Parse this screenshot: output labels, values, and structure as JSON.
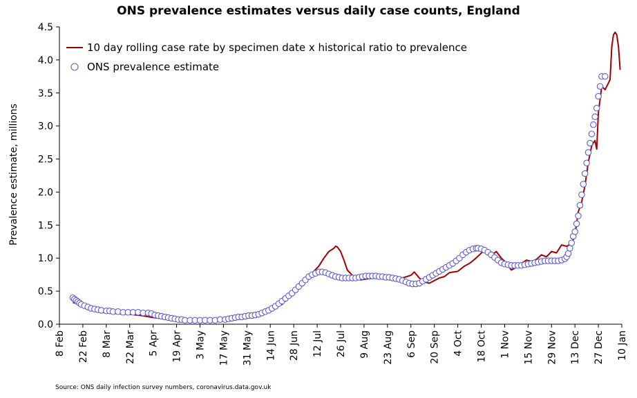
{
  "chart_data": {
    "type": "line",
    "title": "ONS prevalence estimates versus daily case counts, England",
    "xlabel": "",
    "ylabel": "Prevalence estimate, millions",
    "ylim": [
      0,
      4.5
    ],
    "yticks": [
      0.0,
      0.5,
      1.0,
      1.5,
      2.0,
      2.5,
      3.0,
      3.5,
      4.0,
      4.5
    ],
    "ytick_labels": [
      "0.0",
      "0.5",
      "1.0",
      "1.5",
      "2.0",
      "2.5",
      "3.0",
      "3.5",
      "4.0",
      "4.5"
    ],
    "xlim_days": [
      0,
      336
    ],
    "x_unit": "days since 8 Feb",
    "xtick_labels": [
      "8 Feb",
      "22 Feb",
      "8 Mar",
      "22 Mar",
      "5 Apr",
      "19 Apr",
      "3 May",
      "17 May",
      "31 May",
      "14 Jun",
      "28 Jun",
      "12 Jul",
      "26 Jul",
      "9 Aug",
      "23 Aug",
      "6 Sep",
      "20 Sep",
      "4 Oct",
      "18 Oct",
      "1 Nov",
      "15 Nov",
      "29 Nov",
      "13 Dec",
      "27 Dec",
      "10 Jan"
    ],
    "xtick_days": [
      0,
      14,
      28,
      42,
      56,
      70,
      84,
      98,
      112,
      126,
      140,
      154,
      168,
      182,
      196,
      210,
      224,
      238,
      252,
      266,
      280,
      294,
      308,
      322,
      336
    ],
    "legend": {
      "position": "top-left",
      "entries": [
        "10 day rolling case rate by specimen date x historical ratio to prevalence",
        "ONS prevalence estimate"
      ]
    },
    "series": [
      {
        "name": "10 day rolling case rate by specimen date x historical ratio to prevalence",
        "style": "line",
        "color": "#a00000",
        "x": [
          8,
          12,
          16,
          20,
          24,
          28,
          35,
          42,
          49,
          56,
          63,
          70,
          77,
          84,
          91,
          98,
          105,
          112,
          119,
          126,
          133,
          140,
          144,
          148,
          152,
          155,
          158,
          161,
          164,
          165,
          166,
          168,
          170,
          172,
          175,
          180,
          185,
          190,
          196,
          200,
          205,
          210,
          212,
          215,
          218,
          221,
          224,
          227,
          230,
          233,
          238,
          242,
          245,
          248,
          251,
          253,
          255,
          257,
          259,
          261,
          264,
          267,
          270,
          273,
          276,
          279,
          282,
          285,
          288,
          291,
          294,
          297,
          300,
          303,
          306,
          308,
          310,
          312,
          314,
          316,
          318,
          320,
          321,
          322,
          324,
          326,
          328,
          329,
          330,
          331,
          332,
          333,
          334,
          335
        ],
        "y": [
          0.33,
          0.3,
          0.26,
          0.22,
          0.19,
          0.17,
          0.16,
          0.15,
          0.13,
          0.1,
          0.08,
          0.06,
          0.05,
          0.05,
          0.05,
          0.06,
          0.09,
          0.12,
          0.15,
          0.2,
          0.3,
          0.5,
          0.58,
          0.7,
          0.8,
          0.88,
          1.0,
          1.1,
          1.15,
          1.18,
          1.17,
          1.1,
          0.97,
          0.82,
          0.74,
          0.67,
          0.69,
          0.7,
          0.73,
          0.72,
          0.7,
          0.74,
          0.79,
          0.7,
          0.64,
          0.62,
          0.66,
          0.7,
          0.72,
          0.78,
          0.8,
          0.88,
          0.92,
          0.98,
          1.05,
          1.1,
          1.12,
          1.08,
          1.06,
          1.1,
          1.0,
          0.93,
          0.82,
          0.86,
          0.92,
          0.97,
          0.95,
          0.98,
          1.05,
          1.02,
          1.1,
          1.08,
          1.2,
          1.18,
          1.22,
          1.35,
          1.7,
          1.85,
          2.1,
          2.45,
          2.7,
          2.78,
          2.65,
          3.2,
          3.6,
          3.55,
          3.65,
          3.7,
          4.2,
          4.38,
          4.42,
          4.38,
          4.2,
          3.85
        ]
      },
      {
        "name": "ONS prevalence estimate",
        "style": "scatter",
        "color": "#5a5ad0",
        "x": [
          8,
          9,
          10,
          11,
          12,
          13,
          15,
          17,
          19,
          21,
          23,
          25,
          28,
          30,
          32,
          35,
          38,
          41,
          44,
          47,
          50,
          53,
          55,
          57,
          59,
          61,
          63,
          65,
          67,
          69,
          71,
          73,
          75,
          78,
          81,
          84,
          87,
          90,
          93,
          96,
          99,
          101,
          103,
          105,
          107,
          109,
          111,
          113,
          115,
          117,
          119,
          121,
          123,
          125,
          127,
          129,
          131,
          133,
          135,
          137,
          139,
          141,
          143,
          145,
          147,
          149,
          151,
          153,
          155,
          157,
          159,
          161,
          163,
          165,
          167,
          169,
          171,
          173,
          175,
          177,
          179,
          181,
          183,
          185,
          187,
          189,
          191,
          193,
          195,
          197,
          199,
          201,
          203,
          205,
          207,
          209,
          211,
          213,
          215,
          217,
          219,
          221,
          223,
          225,
          227,
          229,
          231,
          233,
          235,
          237,
          239,
          241,
          243,
          245,
          247,
          249,
          250,
          252,
          254,
          256,
          258,
          260,
          262,
          264,
          266,
          268,
          270,
          272,
          274,
          276,
          278,
          280,
          282,
          284,
          286,
          288,
          290,
          292,
          294,
          296,
          298,
          300,
          302,
          303,
          304,
          305,
          306,
          307,
          308,
          309,
          310,
          311,
          312,
          313,
          314,
          315,
          316,
          317,
          318,
          319,
          320,
          321,
          322,
          323,
          324,
          326
        ],
        "y": [
          0.4,
          0.38,
          0.36,
          0.34,
          0.32,
          0.3,
          0.28,
          0.26,
          0.24,
          0.23,
          0.22,
          0.21,
          0.2,
          0.2,
          0.19,
          0.19,
          0.18,
          0.18,
          0.18,
          0.18,
          0.17,
          0.17,
          0.16,
          0.14,
          0.13,
          0.12,
          0.11,
          0.1,
          0.09,
          0.08,
          0.07,
          0.07,
          0.06,
          0.06,
          0.06,
          0.06,
          0.06,
          0.06,
          0.06,
          0.07,
          0.07,
          0.08,
          0.09,
          0.1,
          0.11,
          0.11,
          0.12,
          0.13,
          0.13,
          0.14,
          0.15,
          0.17,
          0.19,
          0.21,
          0.24,
          0.27,
          0.31,
          0.35,
          0.39,
          0.43,
          0.47,
          0.52,
          0.57,
          0.62,
          0.67,
          0.72,
          0.75,
          0.77,
          0.79,
          0.79,
          0.78,
          0.76,
          0.74,
          0.72,
          0.71,
          0.7,
          0.7,
          0.7,
          0.7,
          0.7,
          0.71,
          0.72,
          0.73,
          0.73,
          0.73,
          0.73,
          0.72,
          0.72,
          0.71,
          0.71,
          0.7,
          0.69,
          0.68,
          0.66,
          0.64,
          0.62,
          0.61,
          0.61,
          0.62,
          0.65,
          0.68,
          0.71,
          0.74,
          0.77,
          0.8,
          0.83,
          0.86,
          0.89,
          0.92,
          0.96,
          1.0,
          1.05,
          1.09,
          1.12,
          1.14,
          1.15,
          1.15,
          1.14,
          1.12,
          1.09,
          1.05,
          1.01,
          0.97,
          0.93,
          0.91,
          0.9,
          0.89,
          0.89,
          0.89,
          0.89,
          0.9,
          0.91,
          0.92,
          0.93,
          0.94,
          0.95,
          0.96,
          0.96,
          0.96,
          0.96,
          0.96,
          0.97,
          0.99,
          1.02,
          1.07,
          1.15,
          1.23,
          1.33,
          1.4,
          1.52,
          1.64,
          1.8,
          1.96,
          2.12,
          2.28,
          2.44,
          2.6,
          2.74,
          2.88,
          3.02,
          3.14,
          3.27,
          3.45,
          3.6,
          3.75,
          3.75
        ]
      }
    ]
  },
  "source_note": "Source: ONS daily infection survey numbers, coronavirus.data.gov.uk"
}
